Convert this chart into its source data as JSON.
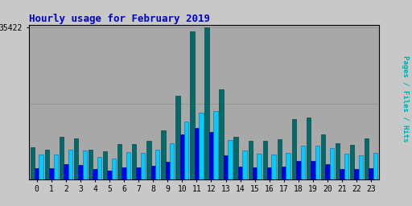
{
  "title": "Hourly usage for February 2019",
  "max_val": 35422,
  "ylabel": "Pages / Files / Hits",
  "hours": [
    0,
    1,
    2,
    3,
    4,
    5,
    6,
    7,
    8,
    9,
    10,
    11,
    12,
    13,
    14,
    15,
    16,
    17,
    18,
    19,
    20,
    21,
    22,
    23
  ],
  "hits": [
    5800,
    5700,
    7000,
    6800,
    5300,
    4900,
    6300,
    6200,
    7000,
    8500,
    13500,
    15500,
    16000,
    9200,
    6800,
    6000,
    5800,
    6200,
    7800,
    7800,
    7200,
    5900,
    5500,
    6200
  ],
  "files": [
    2600,
    2500,
    3600,
    3400,
    2300,
    2000,
    2800,
    2800,
    3100,
    4000,
    10500,
    12000,
    11000,
    5500,
    3000,
    2700,
    2700,
    2900,
    4200,
    4200,
    3500,
    2400,
    2400,
    2600
  ],
  "pages": [
    7500,
    7000,
    10000,
    9500,
    7000,
    6500,
    8300,
    8200,
    9000,
    11500,
    19500,
    34500,
    35422,
    21000,
    10000,
    9000,
    9000,
    9300,
    14000,
    14500,
    10500,
    8500,
    8000,
    9500
  ],
  "hits_color": "#00CCFF",
  "files_color": "#0000EE",
  "pages_color": "#006B6B",
  "bg_color": "#C8C8C8",
  "plot_bg_color": "#A8A8A8",
  "title_color": "#0000CC",
  "ylabel_color": "#00AAAA",
  "grid_color": "#909090",
  "border_color": "#000000"
}
